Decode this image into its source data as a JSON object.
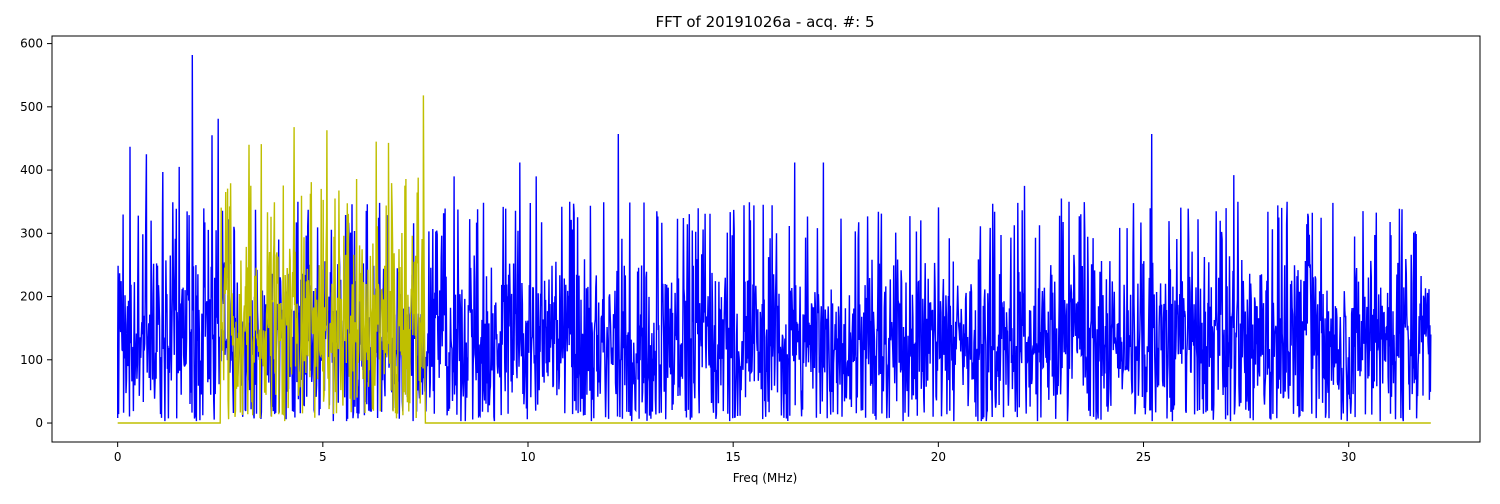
{
  "chart_data": {
    "type": "line",
    "title": "FFT of 20191026a - acq. #: 5",
    "xlabel": "Freq (MHz)",
    "ylabel": "",
    "xlim": [
      -1.6,
      33.2
    ],
    "ylim": [
      -30,
      612
    ],
    "xticks": [
      0,
      5,
      10,
      15,
      20,
      25,
      30
    ],
    "yticks": [
      0,
      100,
      200,
      300,
      400,
      500,
      600
    ],
    "grid": false,
    "legend": "none",
    "series": [
      {
        "color": "#0000ff",
        "x_range": [
          0,
          32
        ],
        "typical_band": [
          20,
          290
        ],
        "noise_floor_mean": 130,
        "peaks": [
          {
            "x": 0.3,
            "y": 437
          },
          {
            "x": 0.7,
            "y": 425
          },
          {
            "x": 1.1,
            "y": 397
          },
          {
            "x": 1.5,
            "y": 405
          },
          {
            "x": 1.82,
            "y": 582
          },
          {
            "x": 2.3,
            "y": 455
          },
          {
            "x": 2.45,
            "y": 481
          },
          {
            "x": 8.2,
            "y": 390
          },
          {
            "x": 9.8,
            "y": 412
          },
          {
            "x": 10.2,
            "y": 390
          },
          {
            "x": 12.2,
            "y": 457
          },
          {
            "x": 16.5,
            "y": 412
          },
          {
            "x": 17.2,
            "y": 412
          },
          {
            "x": 22.1,
            "y": 375
          },
          {
            "x": 23.0,
            "y": 355
          },
          {
            "x": 25.2,
            "y": 457
          },
          {
            "x": 27.2,
            "y": 392
          },
          {
            "x": 31.3,
            "y": 338
          }
        ]
      },
      {
        "color": "#bfbf00",
        "x_range": [
          0,
          32
        ],
        "active_band": [
          2.5,
          7.5
        ],
        "baseline": 0,
        "typical_band": [
          20,
          330
        ],
        "noise_floor_mean": 160,
        "peaks": [
          {
            "x": 3.2,
            "y": 440
          },
          {
            "x": 3.5,
            "y": 441
          },
          {
            "x": 4.3,
            "y": 468
          },
          {
            "x": 5.1,
            "y": 463
          },
          {
            "x": 6.3,
            "y": 445
          },
          {
            "x": 6.6,
            "y": 443
          },
          {
            "x": 7.45,
            "y": 518
          }
        ]
      }
    ]
  }
}
